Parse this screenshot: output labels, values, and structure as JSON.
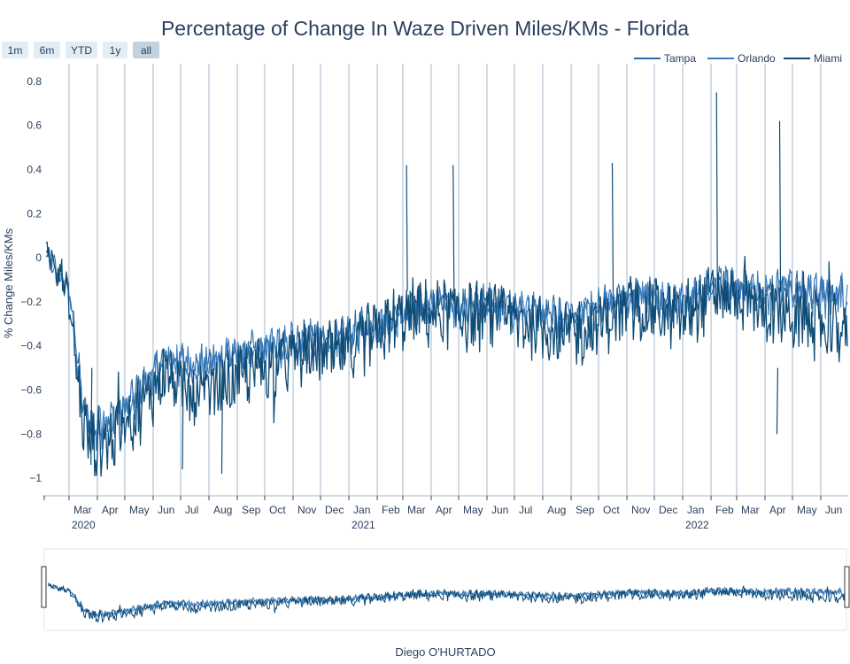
{
  "chart_data": {
    "type": "line",
    "title": "Percentage of Change In Waze Driven Miles/KMs - Florida",
    "ylabel": "% Change Miles/KMs",
    "xlabel": "",
    "credit": "Diego O'HURTADO",
    "ylim": [
      -1.08,
      0.88
    ],
    "y_ticks": [
      -1,
      -0.8,
      -0.6,
      -0.4,
      -0.2,
      0,
      0.2,
      0.4,
      0.6,
      0.8
    ],
    "y_tick_labels": [
      "−1",
      "−0.8",
      "−0.6",
      "−0.4",
      "−0.2",
      "0",
      "0.2",
      "0.4",
      "0.6",
      "0.8"
    ],
    "x_range": [
      "2020-02-01",
      "2022-07-01"
    ],
    "x_month_ticks": [
      {
        "date": "2020-03-01",
        "label": "Mar",
        "year": "2020"
      },
      {
        "date": "2020-04-01",
        "label": "Apr"
      },
      {
        "date": "2020-05-01",
        "label": "May"
      },
      {
        "date": "2020-06-01",
        "label": "Jun"
      },
      {
        "date": "2020-07-01",
        "label": "Jul"
      },
      {
        "date": "2020-08-01",
        "label": "Aug"
      },
      {
        "date": "2020-09-01",
        "label": "Sep"
      },
      {
        "date": "2020-10-01",
        "label": "Oct"
      },
      {
        "date": "2020-11-01",
        "label": "Nov"
      },
      {
        "date": "2020-12-01",
        "label": "Dec"
      },
      {
        "date": "2021-01-01",
        "label": "Jan",
        "year": "2021"
      },
      {
        "date": "2021-02-01",
        "label": "Feb"
      },
      {
        "date": "2021-03-01",
        "label": "Mar"
      },
      {
        "date": "2021-04-01",
        "label": "Apr"
      },
      {
        "date": "2021-05-01",
        "label": "May"
      },
      {
        "date": "2021-06-01",
        "label": "Jun"
      },
      {
        "date": "2021-07-01",
        "label": "Jul"
      },
      {
        "date": "2021-08-01",
        "label": "Aug"
      },
      {
        "date": "2021-09-01",
        "label": "Sep"
      },
      {
        "date": "2021-10-01",
        "label": "Oct"
      },
      {
        "date": "2021-11-01",
        "label": "Nov"
      },
      {
        "date": "2021-12-01",
        "label": "Dec"
      },
      {
        "date": "2022-01-01",
        "label": "Jan",
        "year": "2022"
      },
      {
        "date": "2022-02-01",
        "label": "Feb"
      },
      {
        "date": "2022-03-01",
        "label": "Mar"
      },
      {
        "date": "2022-04-01",
        "label": "Apr"
      },
      {
        "date": "2022-05-01",
        "label": "May"
      },
      {
        "date": "2022-06-01",
        "label": "Jun"
      }
    ],
    "range_buttons": [
      {
        "label": "1m",
        "active": false
      },
      {
        "label": "6m",
        "active": false
      },
      {
        "label": "YTD",
        "active": false
      },
      {
        "label": "1y",
        "active": false
      },
      {
        "label": "all",
        "active": true
      }
    ],
    "legend_placement": "top-right",
    "grid": {
      "vertical": true,
      "horizontal": false
    },
    "series": [
      {
        "name": "Tampa",
        "color": "#2b6ca3",
        "points": [
          [
            "2020-02-05",
            0.02
          ],
          [
            "2020-02-20",
            -0.08
          ],
          [
            "2020-03-01",
            -0.15
          ],
          [
            "2020-03-08",
            -0.35
          ],
          [
            "2020-03-15",
            -0.65
          ],
          [
            "2020-03-22",
            -0.74
          ],
          [
            "2020-04-01",
            -0.76
          ],
          [
            "2020-04-15",
            -0.73
          ],
          [
            "2020-05-01",
            -0.68
          ],
          [
            "2020-05-15",
            -0.6
          ],
          [
            "2020-06-01",
            -0.52
          ],
          [
            "2020-06-15",
            -0.45
          ],
          [
            "2020-07-01",
            -0.47
          ],
          [
            "2020-07-15",
            -0.49
          ],
          [
            "2020-08-01",
            -0.47
          ],
          [
            "2020-08-15",
            -0.45
          ],
          [
            "2020-09-01",
            -0.44
          ],
          [
            "2020-09-15",
            -0.42
          ],
          [
            "2020-10-01",
            -0.41
          ],
          [
            "2020-10-15",
            -0.4
          ],
          [
            "2020-11-01",
            -0.38
          ],
          [
            "2020-11-15",
            -0.37
          ],
          [
            "2020-12-01",
            -0.36
          ],
          [
            "2020-12-15",
            -0.38
          ],
          [
            "2021-01-01",
            -0.35
          ],
          [
            "2021-01-15",
            -0.32
          ],
          [
            "2021-02-01",
            -0.3
          ],
          [
            "2021-02-15",
            -0.27
          ],
          [
            "2021-03-01",
            -0.24
          ],
          [
            "2021-03-15",
            -0.22
          ],
          [
            "2021-04-01",
            -0.22
          ],
          [
            "2021-04-15",
            -0.21
          ],
          [
            "2021-05-01",
            -0.22
          ],
          [
            "2021-05-15",
            -0.22
          ],
          [
            "2021-06-01",
            -0.21
          ],
          [
            "2021-06-15",
            -0.22
          ],
          [
            "2021-07-01",
            -0.23
          ],
          [
            "2021-07-15",
            -0.24
          ],
          [
            "2021-08-01",
            -0.26
          ],
          [
            "2021-08-15",
            -0.27
          ],
          [
            "2021-09-01",
            -0.27
          ],
          [
            "2021-09-15",
            -0.25
          ],
          [
            "2021-10-01",
            -0.23
          ],
          [
            "2021-10-15",
            -0.2
          ],
          [
            "2021-11-01",
            -0.18
          ],
          [
            "2021-11-15",
            -0.17
          ],
          [
            "2021-12-01",
            -0.17
          ],
          [
            "2021-12-15",
            -0.2
          ],
          [
            "2022-01-01",
            -0.2
          ],
          [
            "2022-01-15",
            -0.17
          ],
          [
            "2022-02-01",
            -0.14
          ],
          [
            "2022-02-15",
            -0.12
          ],
          [
            "2022-03-01",
            -0.13
          ],
          [
            "2022-03-15",
            -0.14
          ],
          [
            "2022-04-01",
            -0.15
          ],
          [
            "2022-04-15",
            -0.14
          ],
          [
            "2022-05-01",
            -0.14
          ],
          [
            "2022-05-15",
            -0.15
          ],
          [
            "2022-06-01",
            -0.16
          ],
          [
            "2022-06-15",
            -0.16
          ],
          [
            "2022-06-30",
            -0.17
          ]
        ]
      },
      {
        "name": "Orlando",
        "color": "#3a7bbf",
        "points": [
          [
            "2020-02-05",
            0.0
          ],
          [
            "2020-02-20",
            -0.09
          ],
          [
            "2020-03-01",
            -0.17
          ],
          [
            "2020-03-08",
            -0.38
          ],
          [
            "2020-03-15",
            -0.67
          ],
          [
            "2020-03-22",
            -0.76
          ],
          [
            "2020-04-01",
            -0.78
          ],
          [
            "2020-04-15",
            -0.75
          ],
          [
            "2020-05-01",
            -0.7
          ],
          [
            "2020-05-15",
            -0.62
          ],
          [
            "2020-06-01",
            -0.54
          ],
          [
            "2020-06-15",
            -0.47
          ],
          [
            "2020-07-01",
            -0.48
          ],
          [
            "2020-07-15",
            -0.5
          ],
          [
            "2020-08-01",
            -0.48
          ],
          [
            "2020-08-15",
            -0.46
          ],
          [
            "2020-09-01",
            -0.45
          ],
          [
            "2020-09-15",
            -0.43
          ],
          [
            "2020-10-01",
            -0.42
          ],
          [
            "2020-10-15",
            -0.41
          ],
          [
            "2020-11-01",
            -0.39
          ],
          [
            "2020-11-15",
            -0.38
          ],
          [
            "2020-12-01",
            -0.37
          ],
          [
            "2020-12-15",
            -0.39
          ],
          [
            "2021-01-01",
            -0.36
          ],
          [
            "2021-01-15",
            -0.33
          ],
          [
            "2021-02-01",
            -0.31
          ],
          [
            "2021-02-15",
            -0.28
          ],
          [
            "2021-03-01",
            -0.25
          ],
          [
            "2021-03-15",
            -0.23
          ],
          [
            "2021-04-01",
            -0.23
          ],
          [
            "2021-04-15",
            -0.22
          ],
          [
            "2021-05-01",
            -0.23
          ],
          [
            "2021-05-15",
            -0.23
          ],
          [
            "2021-06-01",
            -0.22
          ],
          [
            "2021-06-15",
            -0.23
          ],
          [
            "2021-07-01",
            -0.24
          ],
          [
            "2021-07-15",
            -0.25
          ],
          [
            "2021-08-01",
            -0.27
          ],
          [
            "2021-08-15",
            -0.28
          ],
          [
            "2021-09-01",
            -0.28
          ],
          [
            "2021-09-15",
            -0.26
          ],
          [
            "2021-10-01",
            -0.24
          ],
          [
            "2021-10-15",
            -0.21
          ],
          [
            "2021-11-01",
            -0.19
          ],
          [
            "2021-11-15",
            -0.18
          ],
          [
            "2021-12-01",
            -0.18
          ],
          [
            "2021-12-15",
            -0.21
          ],
          [
            "2022-01-01",
            -0.21
          ],
          [
            "2022-01-15",
            -0.18
          ],
          [
            "2022-02-01",
            -0.15
          ],
          [
            "2022-02-15",
            -0.13
          ],
          [
            "2022-03-01",
            -0.14
          ],
          [
            "2022-03-15",
            -0.15
          ],
          [
            "2022-04-01",
            -0.16
          ],
          [
            "2022-04-15",
            -0.15
          ],
          [
            "2022-05-01",
            -0.15
          ],
          [
            "2022-05-15",
            -0.16
          ],
          [
            "2022-06-01",
            -0.17
          ],
          [
            "2022-06-15",
            -0.17
          ],
          [
            "2022-06-30",
            -0.18
          ]
        ]
      },
      {
        "name": "Miami",
        "color": "#0f4c75",
        "points": [
          [
            "2020-02-05",
            0.05
          ],
          [
            "2020-02-20",
            -0.05
          ],
          [
            "2020-03-01",
            -0.2
          ],
          [
            "2020-03-08",
            -0.45
          ],
          [
            "2020-03-15",
            -0.72
          ],
          [
            "2020-03-22",
            -0.82
          ],
          [
            "2020-04-01",
            -0.85
          ],
          [
            "2020-04-15",
            -0.83
          ],
          [
            "2020-05-01",
            -0.78
          ],
          [
            "2020-05-15",
            -0.7
          ],
          [
            "2020-06-01",
            -0.6
          ],
          [
            "2020-06-15",
            -0.52
          ],
          [
            "2020-07-01",
            -0.6
          ],
          [
            "2020-07-15",
            -0.65
          ],
          [
            "2020-08-01",
            -0.62
          ],
          [
            "2020-08-15",
            -0.58
          ],
          [
            "2020-09-01",
            -0.56
          ],
          [
            "2020-09-15",
            -0.53
          ],
          [
            "2020-10-01",
            -0.5
          ],
          [
            "2020-10-15",
            -0.48
          ],
          [
            "2020-11-01",
            -0.45
          ],
          [
            "2020-11-15",
            -0.44
          ],
          [
            "2020-12-01",
            -0.43
          ],
          [
            "2020-12-15",
            -0.45
          ],
          [
            "2021-01-01",
            -0.42
          ],
          [
            "2021-01-15",
            -0.38
          ],
          [
            "2021-02-01",
            -0.35
          ],
          [
            "2021-02-15",
            -0.3
          ],
          [
            "2021-03-01",
            -0.27
          ],
          [
            "2021-03-15",
            -0.25
          ],
          [
            "2021-04-01",
            -0.26
          ],
          [
            "2021-04-15",
            -0.25
          ],
          [
            "2021-05-01",
            -0.26
          ],
          [
            "2021-05-15",
            -0.27
          ],
          [
            "2021-06-01",
            -0.26
          ],
          [
            "2021-06-15",
            -0.28
          ],
          [
            "2021-07-01",
            -0.29
          ],
          [
            "2021-07-15",
            -0.3
          ],
          [
            "2021-08-01",
            -0.32
          ],
          [
            "2021-08-15",
            -0.34
          ],
          [
            "2021-09-01",
            -0.35
          ],
          [
            "2021-09-15",
            -0.33
          ],
          [
            "2021-10-01",
            -0.3
          ],
          [
            "2021-10-15",
            -0.27
          ],
          [
            "2021-11-01",
            -0.24
          ],
          [
            "2021-11-15",
            -0.23
          ],
          [
            "2021-12-01",
            -0.23
          ],
          [
            "2021-12-15",
            -0.27
          ],
          [
            "2022-01-01",
            -0.27
          ],
          [
            "2022-01-15",
            -0.22
          ],
          [
            "2022-02-01",
            -0.18
          ],
          [
            "2022-02-15",
            -0.15
          ],
          [
            "2022-03-01",
            -0.17
          ],
          [
            "2022-03-15",
            -0.2
          ],
          [
            "2022-04-01",
            -0.24
          ],
          [
            "2022-04-15",
            -0.25
          ],
          [
            "2022-05-01",
            -0.27
          ],
          [
            "2022-05-15",
            -0.29
          ],
          [
            "2022-06-01",
            -0.31
          ],
          [
            "2022-06-15",
            -0.32
          ],
          [
            "2022-06-30",
            -0.33
          ]
        ]
      }
    ],
    "annotations": [
      {
        "date": "2020-03-25",
        "value": -0.94,
        "label": "low"
      },
      {
        "date": "2020-07-03",
        "value": -0.96,
        "label": "dip"
      },
      {
        "date": "2020-08-15",
        "value": -0.98,
        "label": "dip"
      },
      {
        "date": "2021-03-05",
        "value": 0.42,
        "label": "spike"
      },
      {
        "date": "2021-04-25",
        "value": 0.42,
        "label": "spike"
      },
      {
        "date": "2021-10-16",
        "value": 0.43,
        "label": "spike"
      },
      {
        "date": "2022-02-07",
        "value": 0.75,
        "label": "spike"
      },
      {
        "date": "2022-04-17",
        "value": 0.62,
        "label": "spike"
      },
      {
        "date": "2022-04-14",
        "value": -0.8,
        "label": "dip"
      }
    ]
  }
}
